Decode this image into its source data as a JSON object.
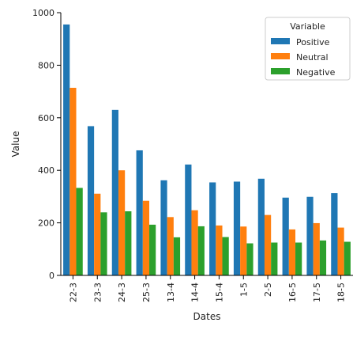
{
  "chart_data": {
    "type": "bar",
    "xlabel": "Dates",
    "ylabel": "Value",
    "categories": [
      "22-3",
      "23-3",
      "24-3",
      "25-3",
      "13-4",
      "14-4",
      "15-4",
      "1-5",
      "2-5",
      "16-5",
      "17-5",
      "18-5"
    ],
    "ylim": [
      0,
      1000
    ],
    "yticks": [
      0,
      200,
      400,
      600,
      800,
      1000
    ],
    "grid": false,
    "legend": {
      "title": "Variable",
      "placement": "top-right"
    },
    "series": [
      {
        "name": "Positive",
        "color": "#1f77b4",
        "values": [
          955,
          568,
          630,
          476,
          362,
          422,
          354,
          357,
          368,
          296,
          299,
          313
        ]
      },
      {
        "name": "Neutral",
        "color": "#ff7f0e",
        "values": [
          714,
          311,
          400,
          284,
          222,
          248,
          190,
          186,
          230,
          175,
          199,
          182
        ]
      },
      {
        "name": "Negative",
        "color": "#2ca02c",
        "values": [
          333,
          240,
          244,
          193,
          145,
          187,
          146,
          122,
          125,
          125,
          133,
          128
        ]
      }
    ]
  }
}
